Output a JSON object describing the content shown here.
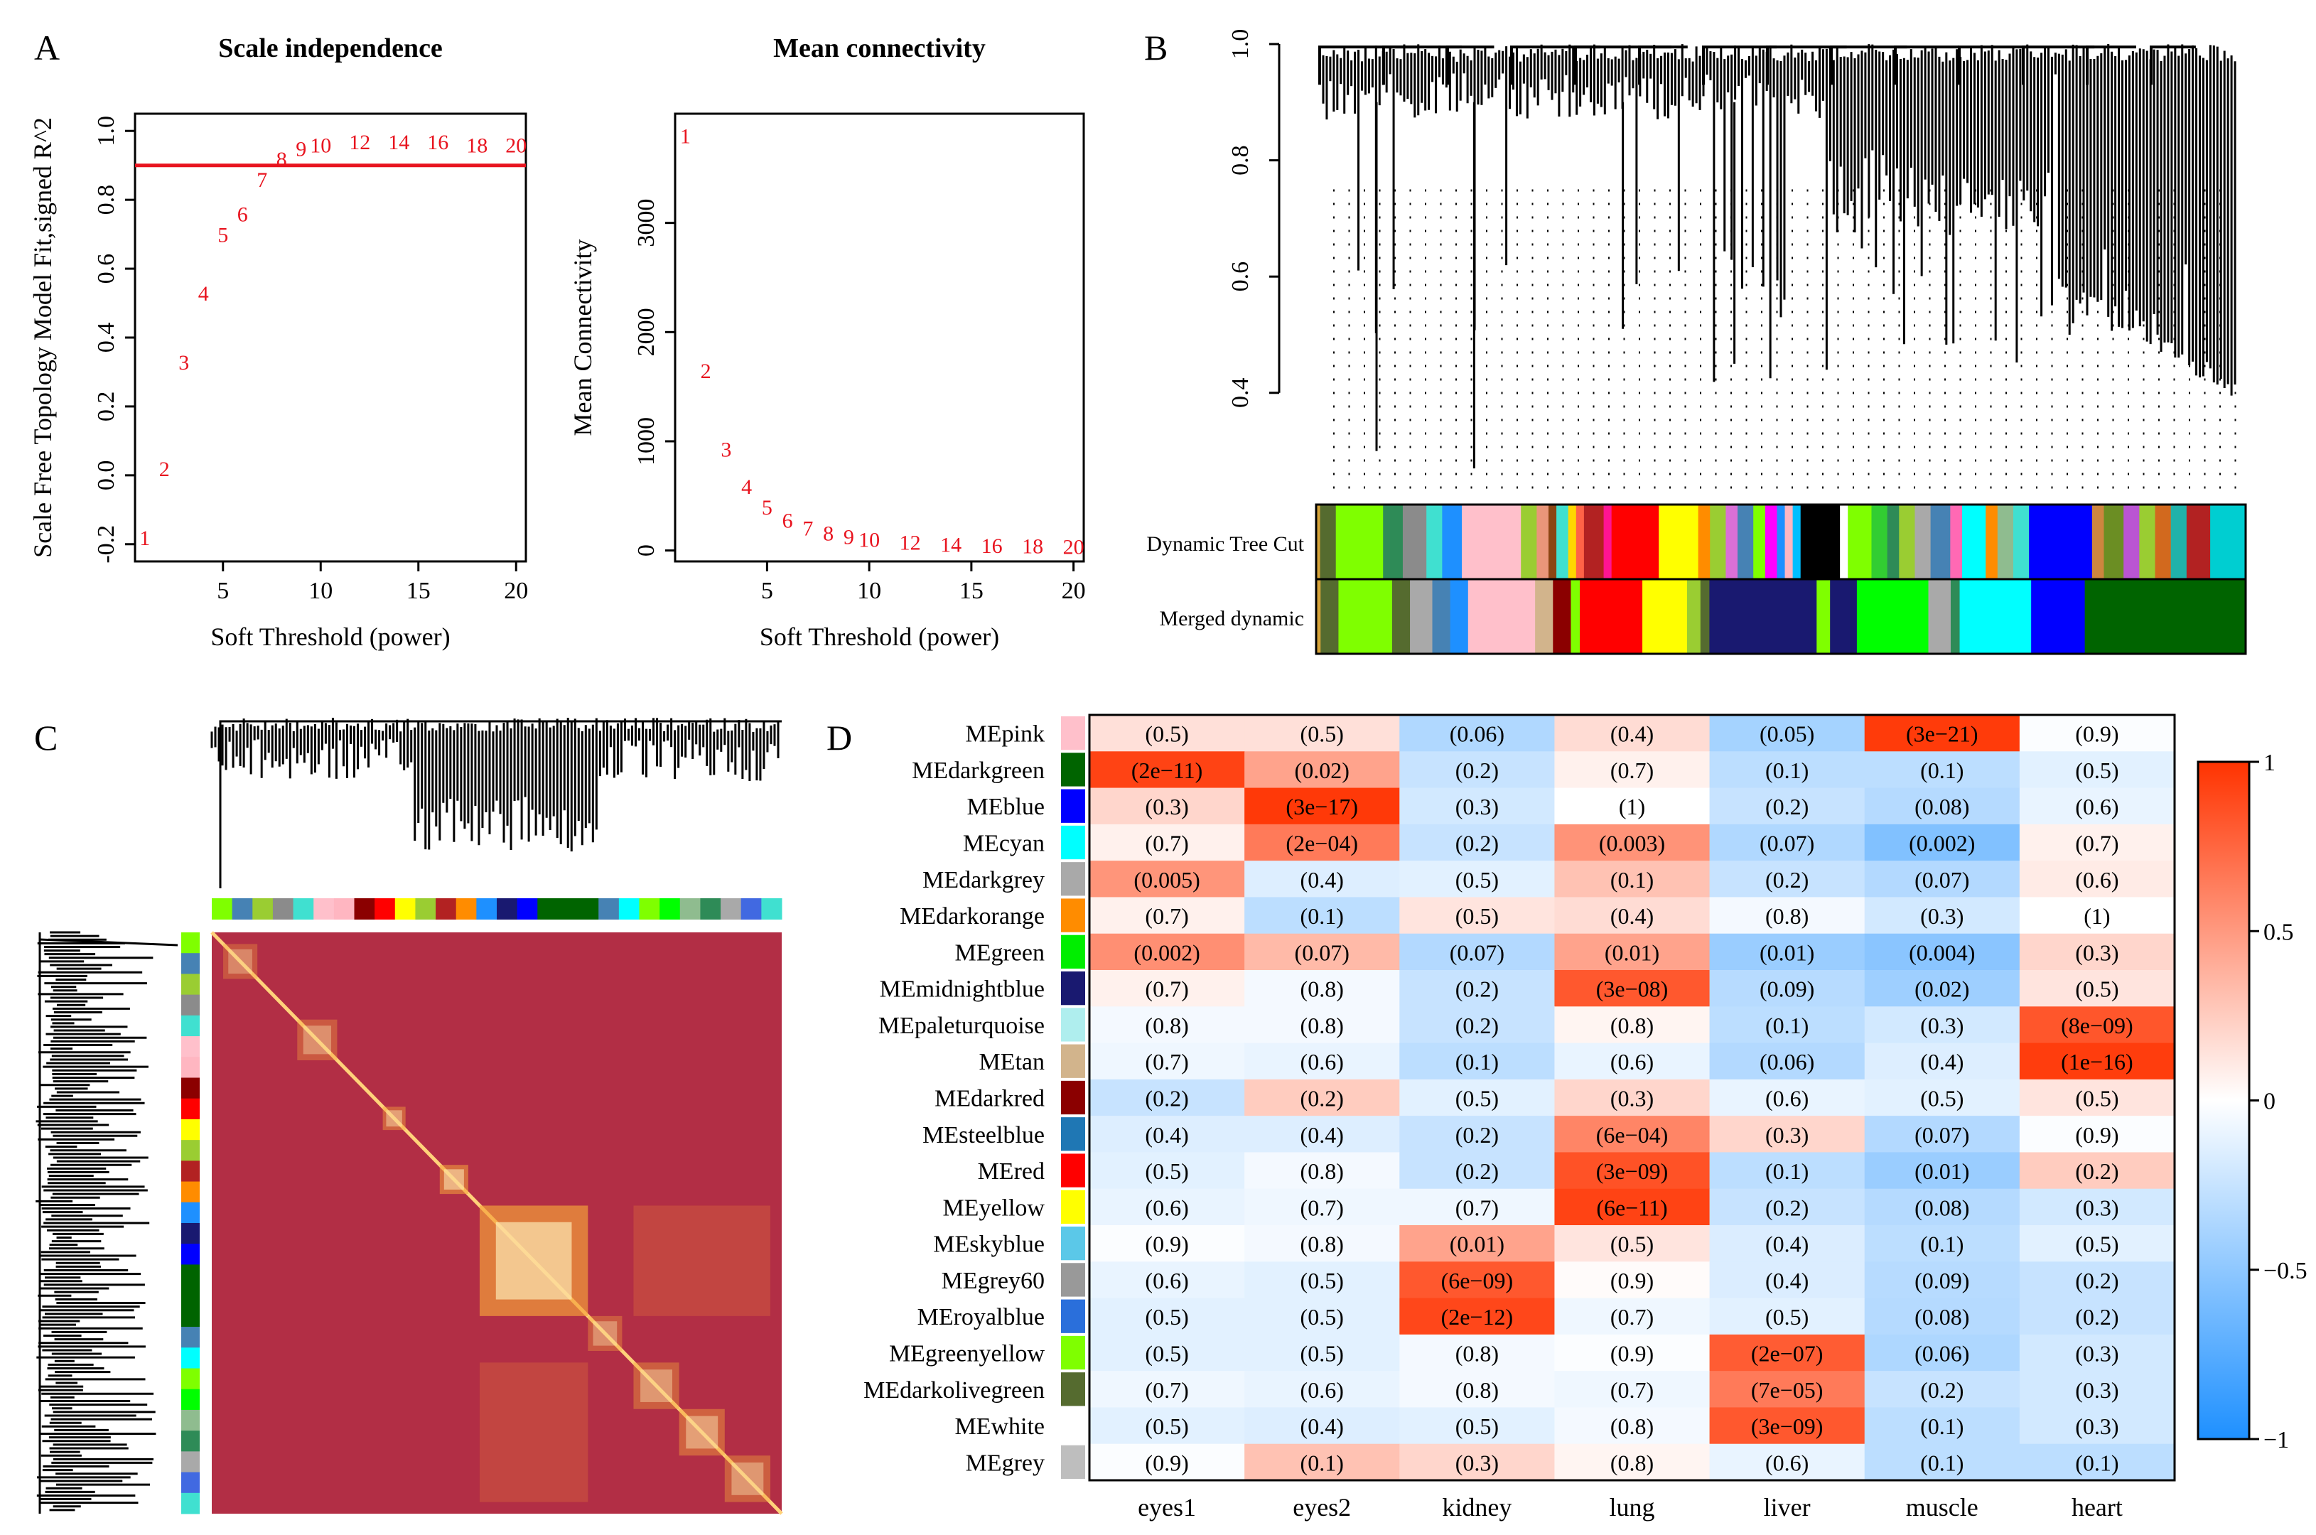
{
  "panel_labels": {
    "a": "A",
    "b": "B",
    "c": "C",
    "d": "D"
  },
  "chart_data": [
    {
      "id": "A1",
      "type": "scatter",
      "title": "Scale independence",
      "xlabel": "Soft Threshold (power)",
      "ylabel": "Scale Free Topology Model Fit,signed R^2",
      "xlim": [
        0.5,
        20.5
      ],
      "ylim": [
        -0.25,
        1.05
      ],
      "xticks": [
        "5",
        "10",
        "15",
        "20"
      ],
      "yticks": [
        "-0.2",
        "0.0",
        "0.2",
        "0.4",
        "0.6",
        "0.8",
        "1.0"
      ],
      "x": [
        1,
        2,
        3,
        4,
        5,
        6,
        7,
        8,
        9,
        10,
        12,
        14,
        16,
        18,
        20
      ],
      "y": [
        -0.18,
        0.02,
        0.33,
        0.53,
        0.7,
        0.76,
        0.86,
        0.92,
        0.95,
        0.96,
        0.97,
        0.97,
        0.97,
        0.96,
        0.96
      ],
      "labels": [
        "1",
        "2",
        "3",
        "4",
        "5",
        "6",
        "7",
        "8",
        "9",
        "10",
        "12",
        "14",
        "16",
        "18",
        "20"
      ],
      "hline": 0.9,
      "point_color": "#e8141f",
      "hline_color": "#e8141f"
    },
    {
      "id": "A2",
      "type": "scatter",
      "title": "Mean connectivity",
      "xlabel": "Soft Threshold (power)",
      "ylabel": "Mean Connectivity",
      "xlim": [
        0.5,
        20.5
      ],
      "ylim": [
        -100,
        4000
      ],
      "xticks": [
        "5",
        "10",
        "15",
        "20"
      ],
      "yticks": [
        "0",
        "1000",
        "2000",
        "3000"
      ],
      "x": [
        1,
        2,
        3,
        4,
        5,
        6,
        7,
        8,
        9,
        10,
        12,
        14,
        16,
        18,
        20
      ],
      "y": [
        3800,
        1650,
        930,
        590,
        400,
        280,
        210,
        165,
        130,
        105,
        80,
        60,
        50,
        45,
        40
      ],
      "labels": [
        "1",
        "2",
        "3",
        "4",
        "5",
        "6",
        "7",
        "8",
        "9",
        "10",
        "12",
        "14",
        "16",
        "18",
        "20"
      ],
      "point_color": "#e8141f"
    },
    {
      "id": "B",
      "type": "dendrogram",
      "ylim": [
        0.22,
        1.0
      ],
      "yticks": [
        "0.4",
        "0.6",
        "0.8",
        "1.0"
      ],
      "rows": [
        {
          "label": "Dynamic Tree Cut",
          "segments": [
            {
              "c": "#d6a33a",
              "w": 1
            },
            {
              "c": "#556b2f",
              "w": 4
            },
            {
              "c": "#7fff00",
              "w": 12
            },
            {
              "c": "#2e8b57",
              "w": 5
            },
            {
              "c": "#8b8b8b",
              "w": 6
            },
            {
              "c": "#40e0d0",
              "w": 4
            },
            {
              "c": "#1e90ff",
              "w": 5
            },
            {
              "c": "#ffc0cb",
              "w": 15
            },
            {
              "c": "#9acd32",
              "w": 4
            },
            {
              "c": "#e9967a",
              "w": 3
            },
            {
              "c": "#8b4513",
              "w": 2
            },
            {
              "c": "#40e0d0",
              "w": 3
            },
            {
              "c": "#ffd700",
              "w": 2
            },
            {
              "c": "#ff6347",
              "w": 2
            },
            {
              "c": "#b22222",
              "w": 5
            },
            {
              "c": "#ff1493",
              "w": 2
            },
            {
              "c": "#ff0000",
              "w": 12
            },
            {
              "c": "#ffff00",
              "w": 10
            },
            {
              "c": "#ff8c00",
              "w": 3
            },
            {
              "c": "#9acd32",
              "w": 4
            },
            {
              "c": "#da70d6",
              "w": 3
            },
            {
              "c": "#4682b4",
              "w": 4
            },
            {
              "c": "#7fff00",
              "w": 3
            },
            {
              "c": "#ff00ff",
              "w": 3
            },
            {
              "c": "#1e90ff",
              "w": 2
            },
            {
              "c": "#ffb6c1",
              "w": 2
            },
            {
              "c": "#00bfff",
              "w": 2
            },
            {
              "c": "#000000",
              "w": 10
            },
            {
              "c": "#ffffff",
              "w": 2
            },
            {
              "c": "#7fff00",
              "w": 6
            },
            {
              "c": "#32cd32",
              "w": 4
            },
            {
              "c": "#2e8b57",
              "w": 3
            },
            {
              "c": "#9acd32",
              "w": 4
            },
            {
              "c": "#a9a9a9",
              "w": 4
            },
            {
              "c": "#4682b4",
              "w": 5
            },
            {
              "c": "#ff69b4",
              "w": 3
            },
            {
              "c": "#00ffff",
              "w": 6
            },
            {
              "c": "#ff8c00",
              "w": 3
            },
            {
              "c": "#8fbc8f",
              "w": 4
            },
            {
              "c": "#40e0d0",
              "w": 4
            },
            {
              "c": "#0000ff",
              "w": 16
            },
            {
              "c": "#cd853f",
              "w": 3
            },
            {
              "c": "#6b8e23",
              "w": 5
            },
            {
              "c": "#ba55d3",
              "w": 4
            },
            {
              "c": "#9acd32",
              "w": 4
            },
            {
              "c": "#d2691e",
              "w": 4
            },
            {
              "c": "#20b2aa",
              "w": 4
            },
            {
              "c": "#b22222",
              "w": 6
            },
            {
              "c": "#00ced1",
              "w": 9
            }
          ]
        },
        {
          "label": "Merged dynamic",
          "segments": [
            {
              "c": "#d6a33a",
              "w": 1
            },
            {
              "c": "#556b2f",
              "w": 4
            },
            {
              "c": "#7fff00",
              "w": 12
            },
            {
              "c": "#556b2f",
              "w": 4
            },
            {
              "c": "#a9a9a9",
              "w": 5
            },
            {
              "c": "#4682b4",
              "w": 4
            },
            {
              "c": "#1e90ff",
              "w": 4
            },
            {
              "c": "#ffc0cb",
              "w": 15
            },
            {
              "c": "#d2b48c",
              "w": 4
            },
            {
              "c": "#8b0000",
              "w": 4
            },
            {
              "c": "#7fff00",
              "w": 2
            },
            {
              "c": "#ff0000",
              "w": 14
            },
            {
              "c": "#ffff00",
              "w": 10
            },
            {
              "c": "#9acd32",
              "w": 3
            },
            {
              "c": "#556b2f",
              "w": 2
            },
            {
              "c": "#191970",
              "w": 24
            },
            {
              "c": "#7fff00",
              "w": 3
            },
            {
              "c": "#191970",
              "w": 6
            },
            {
              "c": "#00ff00",
              "w": 16
            },
            {
              "c": "#a9a9a9",
              "w": 5
            },
            {
              "c": "#2e8b57",
              "w": 2
            },
            {
              "c": "#00ffff",
              "w": 16
            },
            {
              "c": "#0000ff",
              "w": 12
            },
            {
              "c": "#006400",
              "w": 36
            }
          ]
        }
      ]
    },
    {
      "id": "C",
      "type": "heatmap",
      "description_free": true,
      "base_color": "#b22e45",
      "module_bar": [
        "#7fff00",
        "#4682b4",
        "#9acd32",
        "#8b8b8b",
        "#40e0d0",
        "#ffc0cb",
        "#ffb6c1",
        "#8b0000",
        "#ff0000",
        "#ffff00",
        "#9acd32",
        "#b22222",
        "#ff8c00",
        "#1e90ff",
        "#191970",
        "#0000ff",
        "#006400",
        "#006400",
        "#006400",
        "#4682b4",
        "#00ffff",
        "#7fff00",
        "#00ff00",
        "#8fbc8f",
        "#2e8b57",
        "#a9a9a9",
        "#4169e1",
        "#40e0d0"
      ],
      "blocks": [
        {
          "a": 0.02,
          "b": 0.08,
          "i": 0.45
        },
        {
          "a": 0.15,
          "b": 0.22,
          "i": 0.5
        },
        {
          "a": 0.3,
          "b": 0.34,
          "i": 0.6
        },
        {
          "a": 0.4,
          "b": 0.45,
          "i": 0.75
        },
        {
          "a": 0.47,
          "b": 0.66,
          "i": 0.9
        },
        {
          "a": 0.66,
          "b": 0.72,
          "i": 0.5
        },
        {
          "a": 0.74,
          "b": 0.82,
          "i": 0.55
        },
        {
          "a": 0.82,
          "b": 0.9,
          "i": 0.6
        },
        {
          "a": 0.9,
          "b": 0.98,
          "i": 0.55
        }
      ]
    },
    {
      "id": "D",
      "type": "heatmap",
      "columns": [
        "eyes1",
        "eyes2",
        "kidney",
        "lung",
        "liver",
        "muscle",
        "heart"
      ],
      "rows": [
        {
          "module": "MEpink",
          "color": "#ffc0cb",
          "r": [
            0.15,
            0.15,
            -0.35,
            0.17,
            -0.4,
            0.96,
            -0.02
          ],
          "p": [
            "(0.5)",
            "(0.5)",
            "(0.06)",
            "(0.4)",
            "(0.05)",
            "(3e−21)",
            "(0.9)"
          ]
        },
        {
          "module": "MEdarkgreen",
          "color": "#006400",
          "r": [
            0.92,
            0.45,
            -0.25,
            0.07,
            -0.3,
            -0.3,
            -0.13
          ],
          "p": [
            "(2e−11)",
            "(0.02)",
            "(0.2)",
            "(0.7)",
            "(0.1)",
            "(0.1)",
            "(0.5)"
          ]
        },
        {
          "module": "MEblue",
          "color": "#0000ff",
          "r": [
            0.2,
            0.97,
            -0.2,
            0.0,
            -0.25,
            -0.33,
            -0.1
          ],
          "p": [
            "(0.3)",
            "(3e−17)",
            "(0.3)",
            "(1)",
            "(0.2)",
            "(0.08)",
            "(0.6)"
          ]
        },
        {
          "module": "MEcyan",
          "color": "#00ffff",
          "r": [
            0.07,
            0.65,
            -0.25,
            0.53,
            -0.35,
            -0.56,
            0.07
          ],
          "p": [
            "(0.7)",
            "(2e−04)",
            "(0.2)",
            "(0.003)",
            "(0.07)",
            "(0.002)",
            "(0.7)"
          ]
        },
        {
          "module": "MEdarkgrey",
          "color": "#a9a9a9",
          "r": [
            0.52,
            -0.15,
            -0.13,
            0.3,
            -0.25,
            -0.34,
            0.1
          ],
          "p": [
            "(0.005)",
            "(0.4)",
            "(0.5)",
            "(0.1)",
            "(0.2)",
            "(0.07)",
            "(0.6)"
          ]
        },
        {
          "module": "MEdarkorange",
          "color": "#ff8c00",
          "r": [
            0.07,
            -0.3,
            0.13,
            0.17,
            -0.05,
            -0.2,
            0.0
          ],
          "p": [
            "(0.7)",
            "(0.1)",
            "(0.5)",
            "(0.4)",
            "(0.8)",
            "(0.3)",
            "(1)"
          ]
        },
        {
          "module": "MEgreen",
          "color": "#00ee00",
          "r": [
            0.55,
            0.34,
            -0.34,
            0.45,
            -0.45,
            -0.52,
            0.2
          ],
          "p": [
            "(0.002)",
            "(0.07)",
            "(0.07)",
            "(0.01)",
            "(0.01)",
            "(0.004)",
            "(0.3)"
          ]
        },
        {
          "module": "MEmidnightblue",
          "color": "#191970",
          "r": [
            0.07,
            -0.05,
            -0.25,
            0.82,
            -0.32,
            -0.43,
            0.13
          ],
          "p": [
            "(0.7)",
            "(0.8)",
            "(0.2)",
            "(3e−08)",
            "(0.09)",
            "(0.02)",
            "(0.5)"
          ]
        },
        {
          "module": "MEpaleturquoise",
          "color": "#afeeee",
          "r": [
            -0.05,
            -0.05,
            -0.25,
            0.05,
            -0.3,
            -0.2,
            0.83
          ],
          "p": [
            "(0.8)",
            "(0.8)",
            "(0.2)",
            "(0.8)",
            "(0.1)",
            "(0.3)",
            "(8e−09)"
          ]
        },
        {
          "module": "MEtan",
          "color": "#d2b48c",
          "r": [
            -0.07,
            -0.1,
            -0.3,
            -0.1,
            -0.34,
            -0.15,
            0.95
          ],
          "p": [
            "(0.7)",
            "(0.6)",
            "(0.1)",
            "(0.6)",
            "(0.06)",
            "(0.4)",
            "(1e−16)"
          ]
        },
        {
          "module": "MEdarkred",
          "color": "#8b0000",
          "r": [
            -0.25,
            0.25,
            -0.13,
            0.2,
            -0.1,
            -0.13,
            0.13
          ],
          "p": [
            "(0.2)",
            "(0.2)",
            "(0.5)",
            "(0.3)",
            "(0.6)",
            "(0.5)",
            "(0.5)"
          ]
        },
        {
          "module": "MEsteelblue",
          "color": "#1f77b4",
          "r": [
            -0.15,
            -0.15,
            -0.25,
            0.6,
            0.2,
            -0.34,
            -0.02
          ],
          "p": [
            "(0.4)",
            "(0.4)",
            "(0.2)",
            "(6e−04)",
            "(0.3)",
            "(0.07)",
            "(0.9)"
          ]
        },
        {
          "module": "MEred",
          "color": "#ff0000",
          "r": [
            -0.13,
            -0.05,
            -0.25,
            0.85,
            -0.3,
            -0.45,
            0.25
          ],
          "p": [
            "(0.5)",
            "(0.8)",
            "(0.2)",
            "(3e−09)",
            "(0.1)",
            "(0.01)",
            "(0.2)"
          ]
        },
        {
          "module": "MEyellow",
          "color": "#ffff00",
          "r": [
            -0.1,
            -0.07,
            -0.07,
            0.92,
            -0.25,
            -0.33,
            -0.2
          ],
          "p": [
            "(0.6)",
            "(0.7)",
            "(0.7)",
            "(6e−11)",
            "(0.2)",
            "(0.08)",
            "(0.3)"
          ]
        },
        {
          "module": "MEskyblue",
          "color": "#5bc8e8",
          "r": [
            -0.02,
            -0.05,
            0.45,
            0.13,
            -0.16,
            -0.3,
            -0.13
          ],
          "p": [
            "(0.9)",
            "(0.8)",
            "(0.01)",
            "(0.5)",
            "(0.4)",
            "(0.1)",
            "(0.5)"
          ]
        },
        {
          "module": "MEgrey60",
          "color": "#999999",
          "r": [
            -0.1,
            -0.13,
            0.82,
            0.02,
            -0.16,
            -0.32,
            -0.25
          ],
          "p": [
            "(0.6)",
            "(0.5)",
            "(6e−09)",
            "(0.9)",
            "(0.4)",
            "(0.09)",
            "(0.2)"
          ]
        },
        {
          "module": "MEroyalblue",
          "color": "#2a6fdb",
          "r": [
            -0.13,
            -0.13,
            0.9,
            -0.07,
            -0.13,
            -0.33,
            -0.25
          ],
          "p": [
            "(0.5)",
            "(0.5)",
            "(2e−12)",
            "(0.7)",
            "(0.5)",
            "(0.08)",
            "(0.2)"
          ]
        },
        {
          "module": "MEgreenyellow",
          "color": "#7fff00",
          "r": [
            -0.13,
            -0.13,
            -0.05,
            -0.02,
            0.8,
            -0.36,
            -0.2
          ],
          "p": [
            "(0.5)",
            "(0.5)",
            "(0.8)",
            "(0.9)",
            "(2e−07)",
            "(0.06)",
            "(0.3)"
          ]
        },
        {
          "module": "MEdarkolivegreen",
          "color": "#556b2f",
          "r": [
            -0.07,
            -0.1,
            -0.05,
            -0.07,
            0.65,
            -0.25,
            -0.2
          ],
          "p": [
            "(0.7)",
            "(0.6)",
            "(0.8)",
            "(0.7)",
            "(7e−05)",
            "(0.2)",
            "(0.3)"
          ]
        },
        {
          "module": "MEwhite",
          "color": "#ffffff",
          "r": [
            -0.13,
            -0.15,
            -0.13,
            -0.05,
            0.82,
            -0.3,
            -0.2
          ],
          "p": [
            "(0.5)",
            "(0.4)",
            "(0.5)",
            "(0.8)",
            "(3e−09)",
            "(0.1)",
            "(0.3)"
          ]
        },
        {
          "module": "MEgrey",
          "color": "#bebebe",
          "r": [
            -0.02,
            0.3,
            0.2,
            0.05,
            -0.1,
            -0.3,
            -0.3
          ],
          "p": [
            "(0.9)",
            "(0.1)",
            "(0.3)",
            "(0.8)",
            "(0.6)",
            "(0.1)",
            "(0.1)"
          ]
        }
      ],
      "colorbar": {
        "min": -1,
        "max": 1,
        "ticks": [
          "1",
          "0.5",
          "0",
          "−0.5",
          "−1"
        ],
        "neg_color": "#1e90ff",
        "mid_color": "#ffffff",
        "pos_color": "#ff3300"
      }
    }
  ]
}
